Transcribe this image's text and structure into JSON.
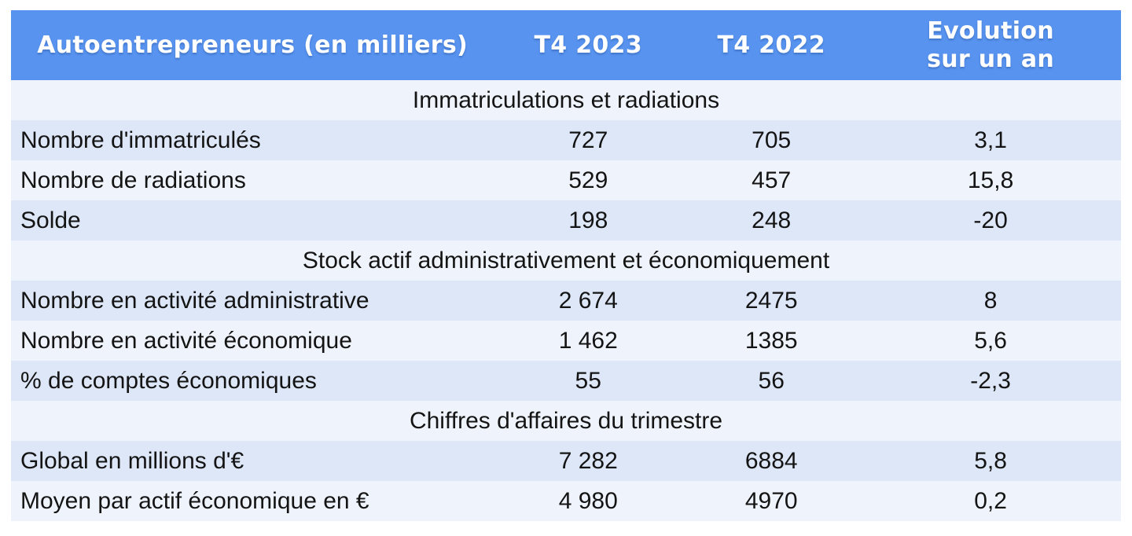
{
  "colors": {
    "header_blue": "#5793ef",
    "row_light_blue": "#dde7f8",
    "row_pale_blue": "#eff4fc",
    "header_text": "#ffffff",
    "body_text": "#141414",
    "page_background": "#ffffff"
  },
  "table": {
    "header": {
      "label": "Autoentrepreneurs (en milliers)",
      "t4_2023": "T4 2023",
      "t4_2022": "T4 2022",
      "evolution_line1": "Evolution",
      "evolution_line2": "sur un an"
    },
    "sections": [
      {
        "title": "Immatriculations et radiations",
        "rows": [
          {
            "label": "Nombre d'immatriculés",
            "t4_2023": "727",
            "t4_2022": "705",
            "evolution": "3,1"
          },
          {
            "label": "Nombre de radiations",
            "t4_2023": "529",
            "t4_2022": "457",
            "evolution": "15,8"
          },
          {
            "label": "Solde",
            "t4_2023": "198",
            "t4_2022": "248",
            "evolution": "-20"
          }
        ]
      },
      {
        "title": "Stock actif administrativement et économiquement",
        "rows": [
          {
            "label": "Nombre en activité administrative",
            "t4_2023": "2 674",
            "t4_2022": "2475",
            "evolution": "8"
          },
          {
            "label": "Nombre en activité économique",
            "t4_2023": "1 462",
            "t4_2022": "1385",
            "evolution": "5,6"
          },
          {
            "label": "% de comptes économiques",
            "t4_2023": "55",
            "t4_2022": "56",
            "evolution": "-2,3"
          }
        ]
      },
      {
        "title": "Chiffres d'affaires du trimestre",
        "rows": [
          {
            "label": "Global en millions d'€",
            "t4_2023": "7 282",
            "t4_2022": "6884",
            "evolution": "5,8"
          },
          {
            "label": "Moyen par actif économique en €",
            "t4_2023": "4 980",
            "t4_2022": "4970",
            "evolution": "0,2"
          }
        ]
      }
    ]
  },
  "chart_data": {
    "type": "table",
    "title": "Autoentrepreneurs (en milliers)",
    "columns": [
      "Autoentrepreneurs (en milliers)",
      "T4 2023",
      "T4 2022",
      "Evolution sur un an"
    ],
    "sections": [
      {
        "title": "Immatriculations et radiations",
        "rows": [
          [
            "Nombre d'immatriculés",
            727,
            705,
            3.1
          ],
          [
            "Nombre de radiations",
            529,
            457,
            15.8
          ],
          [
            "Solde",
            198,
            248,
            -20
          ]
        ]
      },
      {
        "title": "Stock actif administrativement et économiquement",
        "rows": [
          [
            "Nombre en activité administrative",
            2674,
            2475,
            8
          ],
          [
            "Nombre en activité économique",
            1462,
            1385,
            5.6
          ],
          [
            "% de comptes économiques",
            55,
            56,
            -2.3
          ]
        ]
      },
      {
        "title": "Chiffres d'affaires du trimestre",
        "rows": [
          [
            "Global en millions d'€",
            7282,
            6884,
            5.8
          ],
          [
            "Moyen par actif économique en €",
            4980,
            4970,
            0.2
          ]
        ]
      }
    ]
  }
}
